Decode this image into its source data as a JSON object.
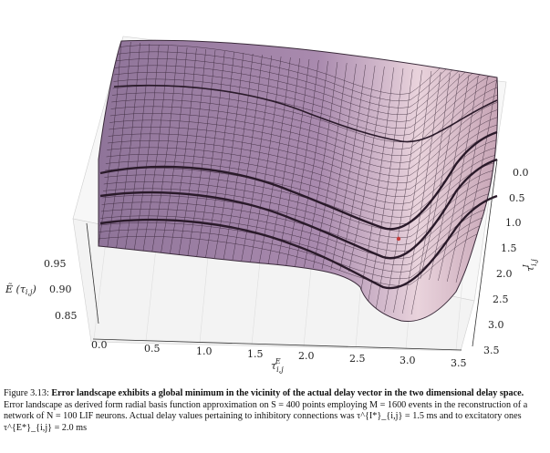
{
  "figure": {
    "surface_color": "#9b7fa6",
    "surface_highlight": "#f0dde4",
    "grid_color": "#2a1a2a",
    "z_axis": {
      "label": "Ẽ (τ_{i,j})",
      "ticks": [
        "0.85",
        "0.90",
        "0.95"
      ]
    },
    "x_axis": {
      "label": "τ^E_{i,j}",
      "ticks": [
        "0.0",
        "0.5",
        "1.0",
        "1.5",
        "2.0",
        "2.5",
        "3.0",
        "3.5"
      ]
    },
    "y_axis": {
      "label": "τ^I_{i,j}",
      "ticks": [
        "0.0",
        "0.5",
        "1.0",
        "1.5",
        "2.0",
        "2.5",
        "3.0",
        "3.5"
      ]
    }
  },
  "caption": {
    "label": "Figure 3.13:",
    "title": "Error landscape exhibits a global minimum in the vicinity of the actual delay vector in the two dimensional delay space.",
    "body": "Error landscape as derived form radial basis function approximation on S = 400 points employing M = 1600 events in the reconstruction of a network of N = 100 LIF neurons. Actual delay values pertaining to inhibitory connections was τ^{I*}_{i,j} = 1.5 ms and to excitatory ones τ^{E*}_{i,j} = 2.0 ms"
  }
}
